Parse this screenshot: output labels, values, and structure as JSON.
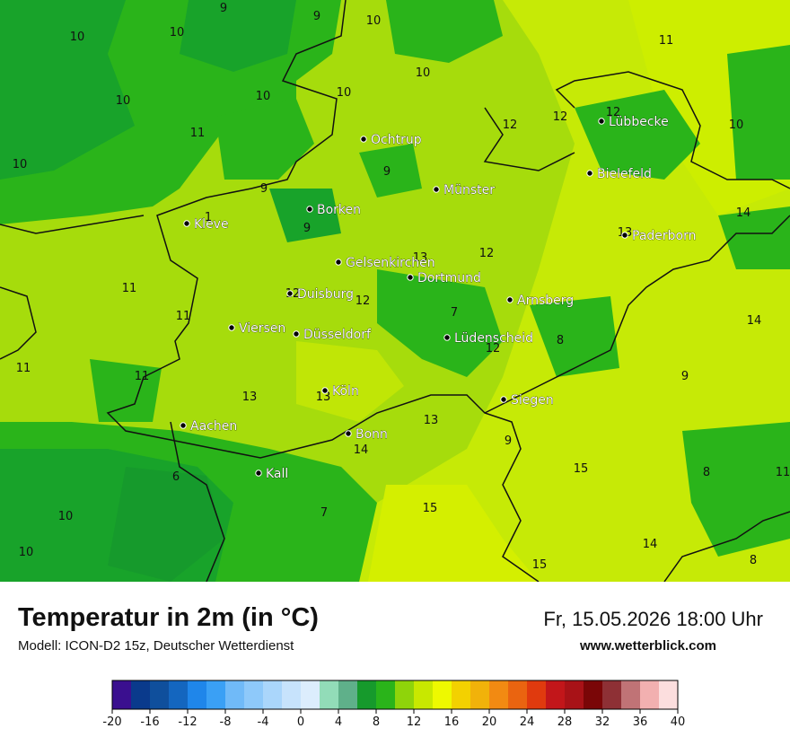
{
  "title": "Temperatur in 2m (in °C)",
  "model": "Modell: ICON-D2 15z, Deutscher Wetterdienst",
  "datetime": "Fr, 15.05.2026 18:00 Uhr",
  "website": "www.wetterblick.com",
  "cities": [
    {
      "name": "Ochtrup"
    },
    {
      "name": "Münster"
    },
    {
      "name": "Lübbecke"
    },
    {
      "name": "Bielefeld"
    },
    {
      "name": "Borken"
    },
    {
      "name": "Kleve"
    },
    {
      "name": "Paderborn"
    },
    {
      "name": "Gelsenkirchen"
    },
    {
      "name": "Dortmund"
    },
    {
      "name": "Duisburg"
    },
    {
      "name": "Arnsberg"
    },
    {
      "name": "Viersen"
    },
    {
      "name": "Düsseldorf"
    },
    {
      "name": "Lüdenscheid"
    },
    {
      "name": "Köln"
    },
    {
      "name": "Siegen"
    },
    {
      "name": "Aachen"
    },
    {
      "name": "Bonn"
    },
    {
      "name": "Kall"
    }
  ],
  "temperature_labels": [
    "9",
    "9",
    "10",
    "10",
    "10",
    "10",
    "10",
    "10",
    "11",
    "12",
    "12",
    "12",
    "10",
    "11",
    "10",
    "9",
    "9",
    "10",
    "1",
    "14",
    "13",
    "9",
    "12",
    "13",
    "12",
    "12",
    "11",
    "11",
    "7",
    "12",
    "8",
    "14",
    "11",
    "11",
    "13",
    "13",
    "9",
    "13",
    "14",
    "6",
    "9",
    "15",
    "8",
    "11",
    "10",
    "7",
    "15",
    "10",
    "14",
    "15",
    "8"
  ],
  "legend": {
    "ticks": [
      "-20",
      "-16",
      "-12",
      "-8",
      "-4",
      "0",
      "4",
      "8",
      "12",
      "16",
      "20",
      "24",
      "28",
      "32",
      "36",
      "40"
    ],
    "colors": [
      "#3a0f8f",
      "#0a3a8c",
      "#0f4f9c",
      "#1466bf",
      "#1f86ea",
      "#3aa0f5",
      "#70baf8",
      "#8ec9fa",
      "#aad6fb",
      "#c7e3fc",
      "#dcedfd",
      "#92dcb8",
      "#5fb08a",
      "#169a2c",
      "#2ab41a",
      "#8fd40a",
      "#c8e800",
      "#eef900",
      "#f3d100",
      "#f1b20a",
      "#f28a12",
      "#ea6410",
      "#e03a0e",
      "#c2161a",
      "#a81217",
      "#7a0607",
      "#8e3035",
      "#c07376",
      "#f2b0b0",
      "#fcdede"
    ]
  }
}
